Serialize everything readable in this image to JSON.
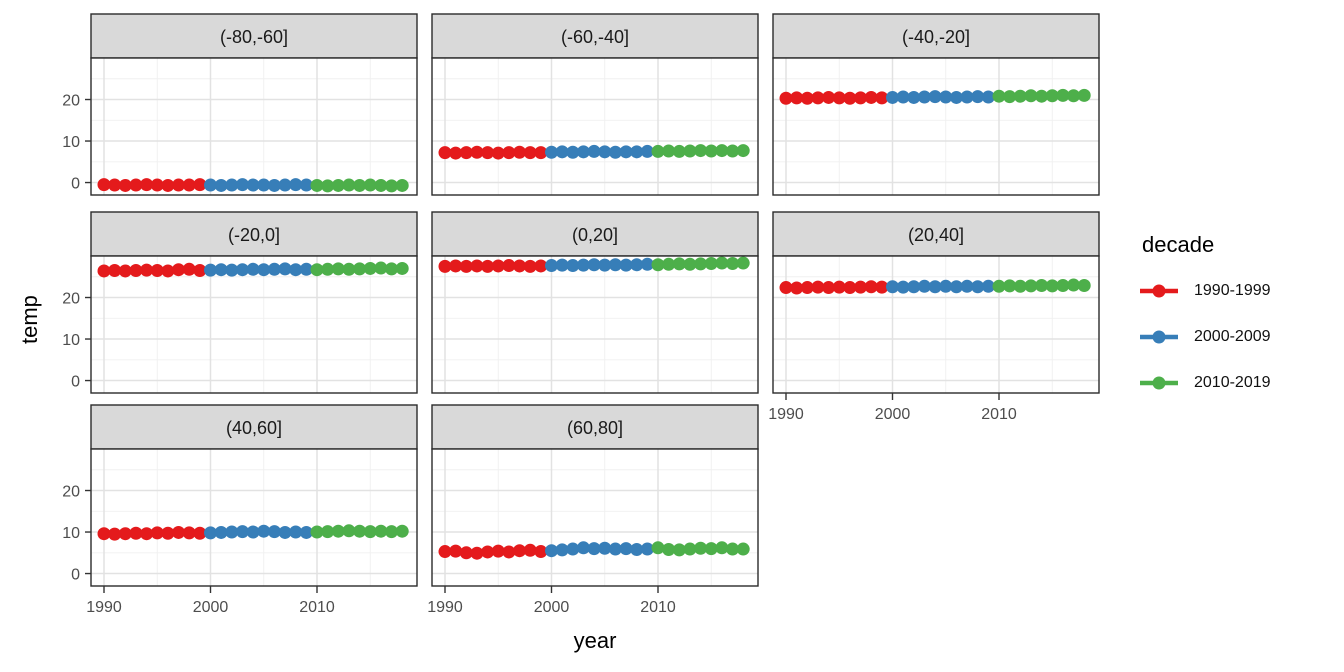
{
  "chart_data": {
    "type": "scatter",
    "title": "",
    "xlabel": "year",
    "ylabel": "temp",
    "x_ticks": [
      "1990",
      "2000",
      "2010"
    ],
    "x_tick_years": [
      1990,
      2000,
      2010
    ],
    "y_ticks": [
      "0",
      "10",
      "20"
    ],
    "y_tick_values": [
      0,
      10,
      20
    ],
    "ylim": [
      -3,
      30
    ],
    "xlim": [
      1988.8,
      2019.4
    ],
    "grid": {
      "on": true,
      "major_y": [
        0,
        10,
        20
      ],
      "minor_y": [
        5,
        15,
        25
      ],
      "major_x": [
        1990,
        2000,
        2010
      ],
      "minor_x": [
        1995,
        2005,
        2015
      ]
    },
    "years": [
      1990,
      1991,
      1992,
      1993,
      1994,
      1995,
      1996,
      1997,
      1998,
      1999,
      2000,
      2001,
      2002,
      2003,
      2004,
      2005,
      2006,
      2007,
      2008,
      2009,
      2010,
      2011,
      2012,
      2013,
      2014,
      2015,
      2016,
      2017,
      2018
    ],
    "legend": {
      "title": "decade",
      "position": "right",
      "entries": [
        {
          "label": "1990-1999",
          "color": "#E41A1C"
        },
        {
          "label": "2000-2009",
          "color": "#377EB8"
        },
        {
          "label": "2010-2019",
          "color": "#4DAF4A"
        }
      ]
    },
    "facet_layout": {
      "rows": 3,
      "cols": 3,
      "show_y_axis_facets": [
        0,
        3,
        6
      ],
      "show_x_axis_facets": [
        5,
        6,
        7
      ]
    },
    "facets": [
      {
        "label": "(-80,-60]",
        "values": [
          -0.5,
          -0.6,
          -0.7,
          -0.6,
          -0.5,
          -0.6,
          -0.7,
          -0.6,
          -0.6,
          -0.5,
          -0.6,
          -0.7,
          -0.6,
          -0.5,
          -0.6,
          -0.6,
          -0.7,
          -0.6,
          -0.5,
          -0.6,
          -0.7,
          -0.8,
          -0.7,
          -0.6,
          -0.7,
          -0.6,
          -0.7,
          -0.8,
          -0.7
        ]
      },
      {
        "label": "(-60,-40]",
        "values": [
          7.2,
          7.1,
          7.2,
          7.3,
          7.2,
          7.1,
          7.2,
          7.3,
          7.2,
          7.2,
          7.3,
          7.4,
          7.3,
          7.4,
          7.5,
          7.4,
          7.3,
          7.4,
          7.4,
          7.5,
          7.5,
          7.6,
          7.5,
          7.6,
          7.7,
          7.6,
          7.7,
          7.6,
          7.7
        ]
      },
      {
        "label": "(-40,-20]",
        "values": [
          20.3,
          20.4,
          20.3,
          20.4,
          20.5,
          20.4,
          20.3,
          20.4,
          20.5,
          20.4,
          20.5,
          20.6,
          20.5,
          20.6,
          20.7,
          20.6,
          20.5,
          20.6,
          20.7,
          20.6,
          20.8,
          20.7,
          20.8,
          20.9,
          20.8,
          20.9,
          21.0,
          20.9,
          21.0
        ]
      },
      {
        "label": "(-20,0]",
        "values": [
          26.4,
          26.5,
          26.4,
          26.5,
          26.6,
          26.5,
          26.4,
          26.7,
          26.8,
          26.5,
          26.6,
          26.7,
          26.6,
          26.7,
          26.8,
          26.7,
          26.8,
          26.9,
          26.7,
          26.8,
          26.7,
          26.8,
          26.9,
          26.8,
          26.9,
          27.0,
          27.1,
          26.9,
          27.0
        ]
      },
      {
        "label": "(0,20]",
        "values": [
          27.5,
          27.6,
          27.5,
          27.6,
          27.5,
          27.6,
          27.7,
          27.6,
          27.5,
          27.6,
          27.7,
          27.8,
          27.7,
          27.8,
          27.9,
          27.8,
          27.9,
          27.8,
          27.9,
          28.0,
          27.9,
          28.0,
          28.1,
          28.0,
          28.1,
          28.2,
          28.3,
          28.2,
          28.3
        ]
      },
      {
        "label": "(20,40]",
        "values": [
          22.4,
          22.3,
          22.4,
          22.5,
          22.4,
          22.5,
          22.4,
          22.5,
          22.6,
          22.5,
          22.6,
          22.5,
          22.6,
          22.7,
          22.6,
          22.7,
          22.6,
          22.7,
          22.6,
          22.7,
          22.7,
          22.8,
          22.7,
          22.8,
          22.9,
          22.8,
          22.9,
          23.0,
          22.9
        ]
      },
      {
        "label": "(40,60]",
        "values": [
          9.6,
          9.5,
          9.6,
          9.7,
          9.6,
          9.8,
          9.7,
          9.9,
          9.8,
          9.7,
          9.8,
          9.9,
          10.0,
          10.1,
          10.0,
          10.2,
          10.1,
          9.9,
          10.0,
          9.9,
          10.0,
          10.1,
          10.2,
          10.3,
          10.2,
          10.1,
          10.2,
          10.1,
          10.2
        ]
      },
      {
        "label": "(60,80]",
        "values": [
          5.3,
          5.4,
          5.0,
          4.9,
          5.2,
          5.4,
          5.2,
          5.5,
          5.6,
          5.3,
          5.5,
          5.7,
          5.9,
          6.2,
          6.0,
          6.1,
          5.9,
          6.0,
          5.8,
          5.9,
          6.2,
          5.8,
          5.7,
          5.9,
          6.1,
          6.0,
          6.2,
          5.9,
          5.9
        ]
      }
    ]
  },
  "colors": {
    "background": "#FFFFFF",
    "strip_fill": "#D9D9D9",
    "panel_border": "#2B2B2B",
    "grid_major": "#E2E2E2",
    "grid_minor": "#F0F0F0",
    "tick_mark": "#333333",
    "tick_label": "#4D4D4D",
    "strip_text": "#1A1A1A"
  }
}
